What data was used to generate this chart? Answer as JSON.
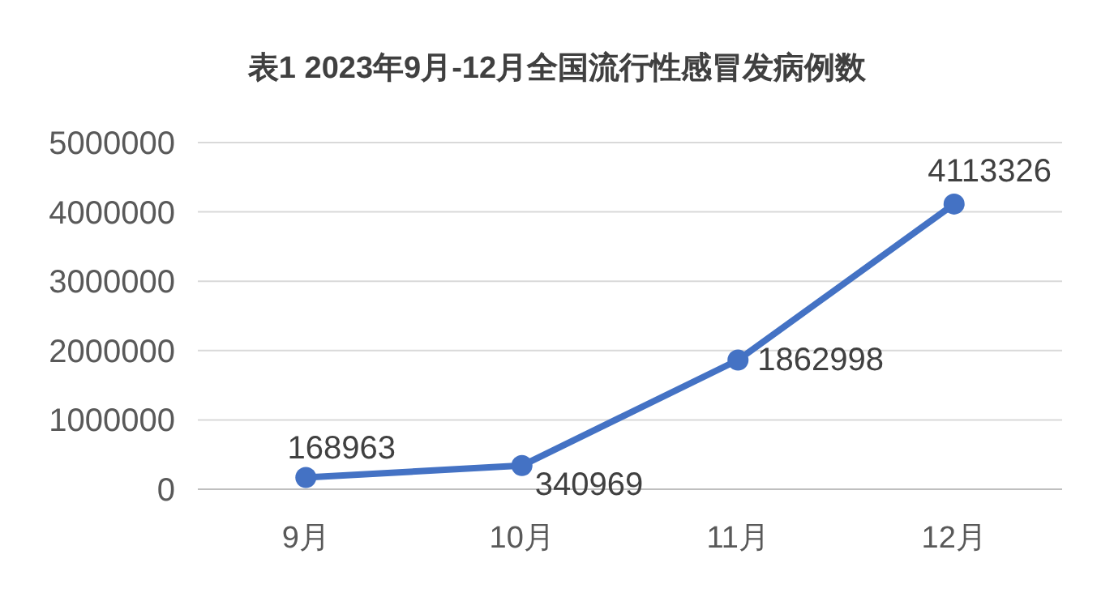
{
  "chart_data": {
    "type": "line",
    "title": "表1 2023年9月-12月全国流行性感冒发病例数",
    "categories": [
      "9月",
      "10月",
      "11月",
      "12月"
    ],
    "series": [
      {
        "color": "#4472c4",
        "values": [
          168963,
          340969,
          1862998,
          4113326
        ]
      }
    ],
    "ylim": [
      0,
      5000000
    ],
    "yticks": [
      0,
      1000000,
      2000000,
      3000000,
      4000000,
      5000000
    ],
    "grid": "y",
    "marker": "circle",
    "line_style": "solid",
    "data_labels": true
  }
}
